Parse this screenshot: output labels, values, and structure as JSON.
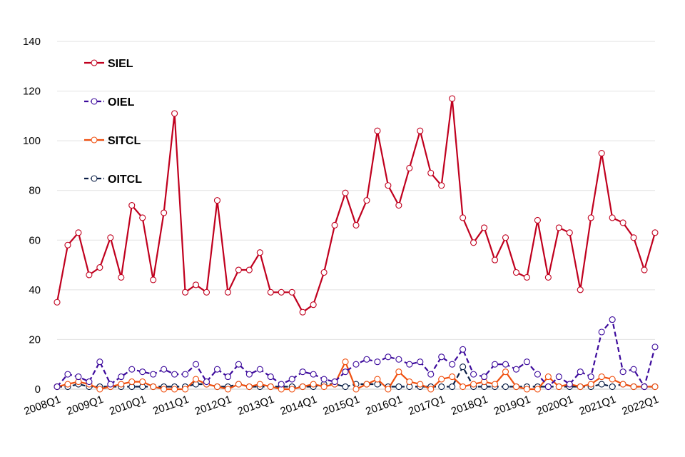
{
  "chart_data": {
    "type": "line",
    "title": "",
    "xlabel": "",
    "ylabel": "",
    "ylim": [
      0,
      140
    ],
    "yticks": [
      0,
      20,
      40,
      60,
      80,
      100,
      120,
      140
    ],
    "grid": "horizontal",
    "legend_position": "top-left",
    "x_tick_labels": [
      "2008Q1",
      "2009Q1",
      "2010Q1",
      "2011Q1",
      "2012Q1",
      "2013Q1",
      "2014Q1",
      "2015Q1",
      "2016Q1",
      "2017Q1",
      "2018Q1",
      "2019Q1",
      "2020Q1",
      "2021Q1",
      "2022Q1"
    ],
    "x": [
      "2008Q1",
      "2008Q2",
      "2008Q3",
      "2008Q4",
      "2009Q1",
      "2009Q2",
      "2009Q3",
      "2009Q4",
      "2010Q1",
      "2010Q2",
      "2010Q3",
      "2010Q4",
      "2011Q1",
      "2011Q2",
      "2011Q3",
      "2011Q4",
      "2012Q1",
      "2012Q2",
      "2012Q3",
      "2012Q4",
      "2013Q1",
      "2013Q2",
      "2013Q3",
      "2013Q4",
      "2014Q1",
      "2014Q2",
      "2014Q3",
      "2014Q4",
      "2015Q1",
      "2015Q2",
      "2015Q3",
      "2015Q4",
      "2016Q1",
      "2016Q2",
      "2016Q3",
      "2016Q4",
      "2017Q1",
      "2017Q2",
      "2017Q3",
      "2017Q4",
      "2018Q1",
      "2018Q2",
      "2018Q3",
      "2018Q4",
      "2019Q1",
      "2019Q2",
      "2019Q3",
      "2019Q4",
      "2020Q1",
      "2020Q2",
      "2020Q3",
      "2020Q4",
      "2021Q1",
      "2021Q2",
      "2021Q3",
      "2021Q4",
      "2022Q1"
    ],
    "series": [
      {
        "name": "SIEL",
        "color": "#c0001e",
        "dash": "solid",
        "values": [
          35,
          58,
          63,
          46,
          49,
          61,
          45,
          74,
          69,
          44,
          71,
          111,
          39,
          42,
          39,
          76,
          39,
          48,
          48,
          55,
          39,
          39,
          39,
          31,
          34,
          47,
          66,
          79,
          66,
          76,
          104,
          82,
          74,
          89,
          104,
          87,
          82,
          117,
          69,
          59,
          65,
          52,
          61,
          47,
          45,
          68,
          45,
          65,
          63,
          40,
          69,
          95,
          69,
          67,
          61,
          48,
          63
        ]
      },
      {
        "name": "OIEL",
        "color": "#3c0a9c",
        "dash": "dashed",
        "values": [
          1,
          6,
          5,
          3,
          11,
          2,
          5,
          8,
          7,
          6,
          8,
          6,
          6,
          10,
          3,
          8,
          5,
          10,
          6,
          8,
          5,
          2,
          4,
          7,
          6,
          4,
          3,
          7,
          10,
          12,
          11,
          13,
          12,
          10,
          11,
          6,
          13,
          10,
          16,
          6,
          5,
          10,
          10,
          8,
          11,
          6,
          1,
          5,
          2,
          7,
          5,
          23,
          28,
          7,
          8,
          1,
          17
        ]
      },
      {
        "name": "SITCL",
        "color": "#f05010",
        "dash": "solid",
        "values": [
          1,
          2,
          3,
          2,
          0,
          1,
          2,
          3,
          3,
          1,
          0,
          0,
          0,
          4,
          2,
          1,
          0,
          2,
          1,
          2,
          1,
          0,
          0,
          1,
          2,
          1,
          2,
          11,
          0,
          2,
          4,
          0,
          7,
          3,
          2,
          0,
          4,
          5,
          1,
          2,
          3,
          2,
          7,
          1,
          0,
          0,
          5,
          1,
          2,
          1,
          2,
          5,
          4,
          2,
          1,
          1,
          1
        ]
      },
      {
        "name": "OITCL",
        "color": "#0a1e46",
        "dash": "dashed",
        "values": [
          1,
          1,
          2,
          1,
          1,
          1,
          1,
          1,
          1,
          1,
          1,
          1,
          1,
          2,
          2,
          1,
          1,
          2,
          1,
          1,
          1,
          1,
          1,
          1,
          1,
          2,
          2,
          1,
          2,
          2,
          2,
          1,
          1,
          1,
          1,
          1,
          1,
          1,
          9,
          1,
          1,
          1,
          1,
          1,
          1,
          1,
          1,
          1,
          1,
          1,
          1,
          2,
          1,
          2,
          1,
          1,
          1
        ]
      }
    ]
  }
}
